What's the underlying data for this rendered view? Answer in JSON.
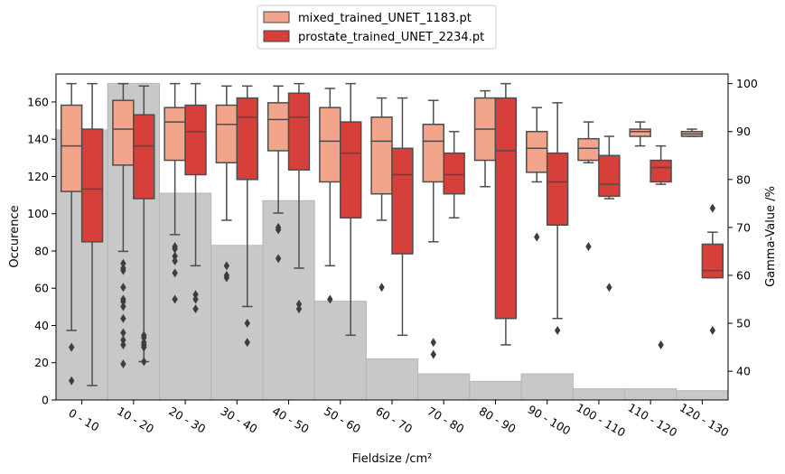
{
  "chart_data": {
    "type": "boxplot",
    "xlabel": "Fieldsize /cm²",
    "ylabel_left": "Occurence",
    "ylabel_right": "Gamma-Value /%",
    "ylim_left": [
      0,
      175
    ],
    "ylim_right": [
      34,
      102
    ],
    "yticks_left": [
      "0",
      "20",
      "40",
      "60",
      "80",
      "100",
      "120",
      "140",
      "160"
    ],
    "yticks_right": [
      "40",
      "50",
      "60",
      "70",
      "80",
      "90",
      "100"
    ],
    "categories": [
      "0 - 10",
      "10 - 20",
      "20 - 30",
      "30 - 40",
      "40 - 50",
      "50 - 60",
      "60 - 70",
      "70 - 80",
      "80 - 90",
      "90 - 100",
      "100 - 110",
      "110 - 120",
      "120 - 130"
    ],
    "histogram": {
      "color": "#c8c8c8",
      "values": [
        145,
        170,
        111,
        83,
        107,
        53,
        22,
        14,
        10,
        14,
        6,
        6,
        5
      ]
    },
    "legend": {
      "position": "top-center",
      "entries": [
        {
          "label": "mixed_trained_UNET_1183.pt",
          "color": "#f2a58a"
        },
        {
          "label": "prostate_trained_UNET_2234.pt",
          "color": "#d7403a"
        }
      ]
    },
    "series": [
      {
        "name": "mixed_trained_UNET_1183.pt",
        "color": "#f2a58a",
        "boxes": [
          {
            "whislo": 48.5,
            "q1": 77.5,
            "med": 87.0,
            "q3": 95.5,
            "whishi": 100.0,
            "fliers": [
              45.0,
              38.0
            ]
          },
          {
            "whislo": 65.0,
            "q1": 83.0,
            "med": 90.5,
            "q3": 96.5,
            "whishi": 100.0,
            "fliers": [
              62.5,
              61.5,
              61.0,
              57.5,
              55.0,
              54.5,
              53.5,
              51.0,
              48.0,
              46.5,
              45.5,
              41.5
            ]
          },
          {
            "whislo": 68.5,
            "q1": 84.0,
            "med": 92.0,
            "q3": 95.0,
            "whishi": 100.0,
            "fliers": [
              66.0,
              65.5,
              64.0,
              63.0,
              60.5,
              55.0
            ]
          },
          {
            "whislo": 71.5,
            "q1": 83.5,
            "med": 91.5,
            "q3": 95.5,
            "whishi": 99.5,
            "fliers": [
              62.0,
              60.0,
              59.5
            ]
          },
          {
            "whislo": 73.0,
            "q1": 86.0,
            "med": 92.5,
            "q3": 96.0,
            "whishi": 99.5,
            "fliers": [
              70.0,
              69.5,
              63.5
            ]
          },
          {
            "whislo": 62.0,
            "q1": 79.5,
            "med": 88.0,
            "q3": 95.0,
            "whishi": 99.0,
            "fliers": [
              55.0
            ]
          },
          {
            "whislo": 71.5,
            "q1": 77.0,
            "med": 88.0,
            "q3": 93.0,
            "whishi": 97.0,
            "fliers": [
              57.5
            ]
          },
          {
            "whislo": 67.0,
            "q1": 79.5,
            "med": 88.0,
            "q3": 91.5,
            "whishi": 96.5,
            "fliers": [
              46.0,
              43.5
            ]
          },
          {
            "whislo": 78.5,
            "q1": 84.0,
            "med": 90.5,
            "q3": 97.0,
            "whishi": 98.5,
            "fliers": []
          },
          {
            "whislo": 79.5,
            "q1": 81.5,
            "med": 86.5,
            "q3": 90.0,
            "whishi": 95.0,
            "fliers": [
              68.0
            ]
          },
          {
            "whislo": 83.5,
            "q1": 84.0,
            "med": 86.5,
            "q3": 88.5,
            "whishi": 92.0,
            "fliers": [
              66.0
            ]
          },
          {
            "whislo": 87.0,
            "q1": 89.0,
            "med": 90.0,
            "q3": 90.5,
            "whishi": 92.0,
            "fliers": []
          },
          {
            "whislo": 89.0,
            "q1": 89.0,
            "med": 89.5,
            "q3": 90.0,
            "whishi": 90.5,
            "fliers": []
          }
        ]
      },
      {
        "name": "prostate_trained_UNET_2234.pt",
        "color": "#d7403a",
        "boxes": [
          {
            "whislo": 37.0,
            "q1": 67.0,
            "med": 78.0,
            "q3": 90.5,
            "whishi": 100.0,
            "fliers": []
          },
          {
            "whislo": 42.0,
            "q1": 76.0,
            "med": 87.0,
            "q3": 93.5,
            "whishi": 99.5,
            "fliers": [
              47.5,
              47.0,
              46.0,
              45.5,
              45.0,
              42.0
            ]
          },
          {
            "whislo": 62.0,
            "q1": 81.0,
            "med": 90.0,
            "q3": 95.5,
            "whishi": 100.0,
            "fliers": [
              56.0,
              55.0,
              53.0
            ]
          },
          {
            "whislo": 53.5,
            "q1": 80.0,
            "med": 93.0,
            "q3": 97.0,
            "whishi": 99.5,
            "fliers": [
              50.0,
              46.0
            ]
          },
          {
            "whislo": 61.5,
            "q1": 82.0,
            "med": 93.0,
            "q3": 98.0,
            "whishi": 100.0,
            "fliers": [
              54.0,
              53.0
            ]
          },
          {
            "whislo": 47.5,
            "q1": 72.0,
            "med": 85.5,
            "q3": 92.0,
            "whishi": 100.0,
            "fliers": []
          },
          {
            "whislo": 47.5,
            "q1": 64.5,
            "med": 81.0,
            "q3": 86.5,
            "whishi": 97.0,
            "fliers": []
          },
          {
            "whislo": 72.0,
            "q1": 77.0,
            "med": 81.0,
            "q3": 85.5,
            "whishi": 90.0,
            "fliers": []
          },
          {
            "whislo": 45.5,
            "q1": 51.0,
            "med": 86.0,
            "q3": 97.0,
            "whishi": 100.0,
            "fliers": []
          },
          {
            "whislo": 51.0,
            "q1": 70.5,
            "med": 79.5,
            "q3": 85.5,
            "whishi": 96.0,
            "fliers": [
              48.5
            ]
          },
          {
            "whislo": 76.0,
            "q1": 76.5,
            "med": 79.0,
            "q3": 85.0,
            "whishi": 89.0,
            "fliers": [
              57.5
            ]
          },
          {
            "whislo": 79.0,
            "q1": 79.5,
            "med": 82.5,
            "q3": 84.0,
            "whishi": 87.0,
            "fliers": [
              45.5
            ]
          },
          {
            "whislo": 59.5,
            "q1": 59.5,
            "med": 61.0,
            "q3": 66.5,
            "whishi": 69.0,
            "fliers": [
              48.5,
              74.0
            ]
          }
        ]
      }
    ]
  }
}
